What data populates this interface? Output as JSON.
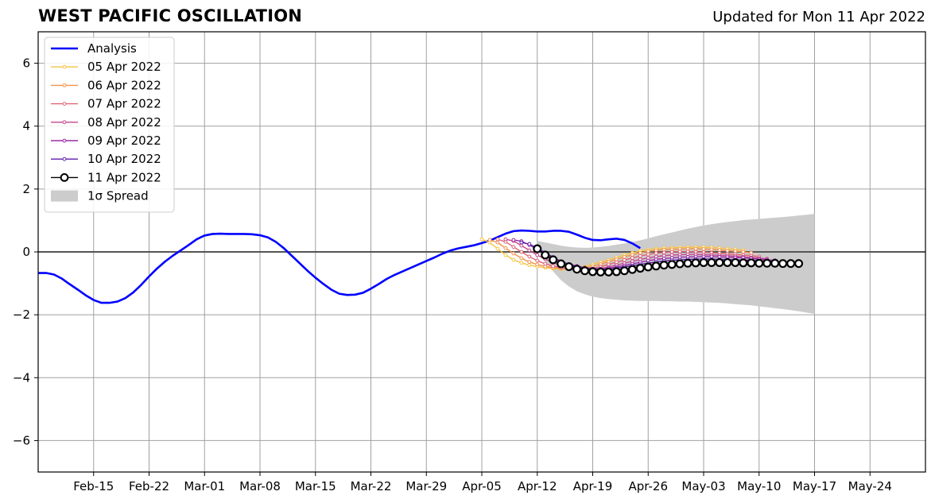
{
  "title": "WEST PACIFIC OSCILLATION",
  "updated": "Updated for Mon 11 Apr 2022",
  "chart_data": {
    "type": "line",
    "title": "WEST PACIFIC OSCILLATION",
    "xlabel": "",
    "ylabel": "",
    "xlim": [
      "2022-02-08",
      "2022-05-31"
    ],
    "ylim": [
      -7,
      7
    ],
    "grid": true,
    "legend_position": "top-left",
    "x_ticks": [
      "Feb-15",
      "Feb-22",
      "Mar-01",
      "Mar-08",
      "Mar-15",
      "Mar-22",
      "Mar-29",
      "Apr-05",
      "Apr-12",
      "Apr-19",
      "Apr-26",
      "May-03",
      "May-10",
      "May-17",
      "May-24"
    ],
    "x_tick_dates": [
      "2022-02-15",
      "2022-02-22",
      "2022-03-01",
      "2022-03-08",
      "2022-03-15",
      "2022-03-22",
      "2022-03-29",
      "2022-04-05",
      "2022-04-12",
      "2022-04-19",
      "2022-04-26",
      "2022-05-03",
      "2022-05-10",
      "2022-05-17",
      "2022-05-24"
    ],
    "y_ticks": [
      -6,
      -4,
      -2,
      0,
      2,
      4,
      6
    ],
    "y_tick_labels": [
      "−6",
      "−4",
      "−2",
      "0",
      "2",
      "4",
      "6"
    ],
    "analysis": {
      "name": "Analysis",
      "color": "#0000ff",
      "start": "2022-02-08",
      "values": [
        -0.67,
        -0.67,
        -0.72,
        -0.85,
        -1.03,
        -1.2,
        -1.38,
        -1.53,
        -1.62,
        -1.62,
        -1.58,
        -1.47,
        -1.29,
        -1.05,
        -0.78,
        -0.53,
        -0.31,
        -0.12,
        0.05,
        0.22,
        0.4,
        0.52,
        0.57,
        0.58,
        0.57,
        0.57,
        0.57,
        0.56,
        0.53,
        0.46,
        0.32,
        0.12,
        -0.12,
        -0.36,
        -0.6,
        -0.82,
        -1.02,
        -1.2,
        -1.33,
        -1.37,
        -1.36,
        -1.3,
        -1.17,
        -1.02,
        -0.86,
        -0.73,
        -0.62,
        -0.51,
        -0.4,
        -0.29,
        -0.18,
        -0.06,
        0.04,
        0.11,
        0.16,
        0.21,
        0.28,
        0.36,
        0.47,
        0.58,
        0.66,
        0.68,
        0.67,
        0.65,
        0.65,
        0.67,
        0.67,
        0.64,
        0.55,
        0.45,
        0.38,
        0.37,
        0.4,
        0.42,
        0.38,
        0.27,
        0.12
      ]
    },
    "forecasts": [
      {
        "name": "05 Apr 2022",
        "color": "#f6c342",
        "start": "2022-04-05",
        "values": [
          0.4,
          0.3,
          0.1,
          -0.1,
          -0.25,
          -0.35,
          -0.42,
          -0.47,
          -0.5,
          -0.53,
          -0.55,
          -0.55,
          -0.52,
          -0.47,
          -0.4,
          -0.33,
          -0.26,
          -0.18,
          -0.1,
          -0.03,
          0.03,
          0.07,
          0.1,
          0.12,
          0.13,
          0.14,
          0.15,
          0.15,
          0.15,
          0.14,
          0.12,
          0.1,
          0.08,
          0.05
        ]
      },
      {
        "name": "06 Apr 2022",
        "color": "#f5924a",
        "start": "2022-04-06",
        "values": [
          0.38,
          0.3,
          0.12,
          -0.05,
          -0.2,
          -0.32,
          -0.4,
          -0.46,
          -0.5,
          -0.53,
          -0.55,
          -0.55,
          -0.52,
          -0.46,
          -0.39,
          -0.31,
          -0.24,
          -0.16,
          -0.09,
          -0.03,
          0.02,
          0.05,
          0.07,
          0.08,
          0.09,
          0.1,
          0.1,
          0.09,
          0.08,
          0.06,
          0.04,
          0.02,
          0.0,
          -0.03
        ]
      },
      {
        "name": "07 Apr 2022",
        "color": "#e06474",
        "start": "2022-04-07",
        "values": [
          0.4,
          0.32,
          0.16,
          0.0,
          -0.15,
          -0.28,
          -0.38,
          -0.45,
          -0.5,
          -0.53,
          -0.55,
          -0.55,
          -0.53,
          -0.47,
          -0.4,
          -0.33,
          -0.26,
          -0.19,
          -0.13,
          -0.08,
          -0.04,
          -0.02,
          0.0,
          0.01,
          0.01,
          0.0,
          -0.01,
          -0.03,
          -0.04,
          -0.06,
          -0.08,
          -0.1,
          -0.12,
          -0.15
        ]
      },
      {
        "name": "08 Apr 2022",
        "color": "#c4458a",
        "start": "2022-04-08",
        "values": [
          0.4,
          0.35,
          0.2,
          0.05,
          -0.1,
          -0.23,
          -0.34,
          -0.42,
          -0.48,
          -0.52,
          -0.55,
          -0.55,
          -0.53,
          -0.48,
          -0.42,
          -0.36,
          -0.3,
          -0.24,
          -0.19,
          -0.15,
          -0.12,
          -0.1,
          -0.09,
          -0.08,
          -0.08,
          -0.09,
          -0.1,
          -0.11,
          -0.12,
          -0.14,
          -0.16,
          -0.18,
          -0.2,
          -0.22
        ]
      },
      {
        "name": "09 Apr 2022",
        "color": "#9b2aa6",
        "start": "2022-04-09",
        "values": [
          0.38,
          0.34,
          0.22,
          0.08,
          -0.07,
          -0.2,
          -0.3,
          -0.39,
          -0.45,
          -0.5,
          -0.53,
          -0.54,
          -0.52,
          -0.48,
          -0.43,
          -0.38,
          -0.33,
          -0.28,
          -0.24,
          -0.21,
          -0.19,
          -0.17,
          -0.16,
          -0.15,
          -0.15,
          -0.15,
          -0.16,
          -0.17,
          -0.18,
          -0.19,
          -0.21,
          -0.23,
          -0.25,
          -0.27
        ]
      },
      {
        "name": "10 Apr 2022",
        "color": "#5c1bae",
        "start": "2022-04-10",
        "values": [
          0.3,
          0.25,
          0.12,
          -0.02,
          -0.17,
          -0.3,
          -0.4,
          -0.47,
          -0.52,
          -0.55,
          -0.56,
          -0.55,
          -0.52,
          -0.48,
          -0.44,
          -0.4,
          -0.36,
          -0.32,
          -0.29,
          -0.27,
          -0.25,
          -0.24,
          -0.23,
          -0.23,
          -0.23,
          -0.24,
          -0.24,
          -0.25,
          -0.26,
          -0.27,
          -0.28,
          -0.29,
          -0.31,
          -0.33
        ]
      },
      {
        "name": "11 Apr 2022",
        "color": "#000000",
        "start": "2022-04-12",
        "values": [
          0.1,
          -0.1,
          -0.25,
          -0.38,
          -0.47,
          -0.55,
          -0.6,
          -0.63,
          -0.64,
          -0.64,
          -0.63,
          -0.6,
          -0.56,
          -0.52,
          -0.48,
          -0.45,
          -0.42,
          -0.4,
          -0.38,
          -0.36,
          -0.35,
          -0.34,
          -0.34,
          -0.34,
          -0.34,
          -0.34,
          -0.35,
          -0.35,
          -0.36,
          -0.36,
          -0.36,
          -0.37,
          -0.37,
          -0.37
        ]
      }
    ],
    "spread": {
      "name": "1σ Spread",
      "color": "#cccccc",
      "start": "2022-04-12",
      "upper": [
        0.35,
        0.3,
        0.25,
        0.2,
        0.16,
        0.14,
        0.13,
        0.14,
        0.16,
        0.19,
        0.23,
        0.27,
        0.32,
        0.37,
        0.43,
        0.5,
        0.56,
        0.62,
        0.68,
        0.74,
        0.79,
        0.84,
        0.88,
        0.92,
        0.95,
        0.98,
        1.01,
        1.03,
        1.05,
        1.07,
        1.09,
        1.11,
        1.13,
        1.16,
        1.18,
        1.21
      ],
      "lower": [
        0.1,
        -0.3,
        -0.62,
        -0.9,
        -1.1,
        -1.25,
        -1.35,
        -1.42,
        -1.47,
        -1.5,
        -1.52,
        -1.54,
        -1.55,
        -1.56,
        -1.56,
        -1.56,
        -1.57,
        -1.57,
        -1.58,
        -1.58,
        -1.59,
        -1.6,
        -1.61,
        -1.62,
        -1.64,
        -1.66,
        -1.68,
        -1.7,
        -1.73,
        -1.76,
        -1.79,
        -1.82,
        -1.85,
        -1.89,
        -1.93,
        -1.97
      ]
    }
  }
}
